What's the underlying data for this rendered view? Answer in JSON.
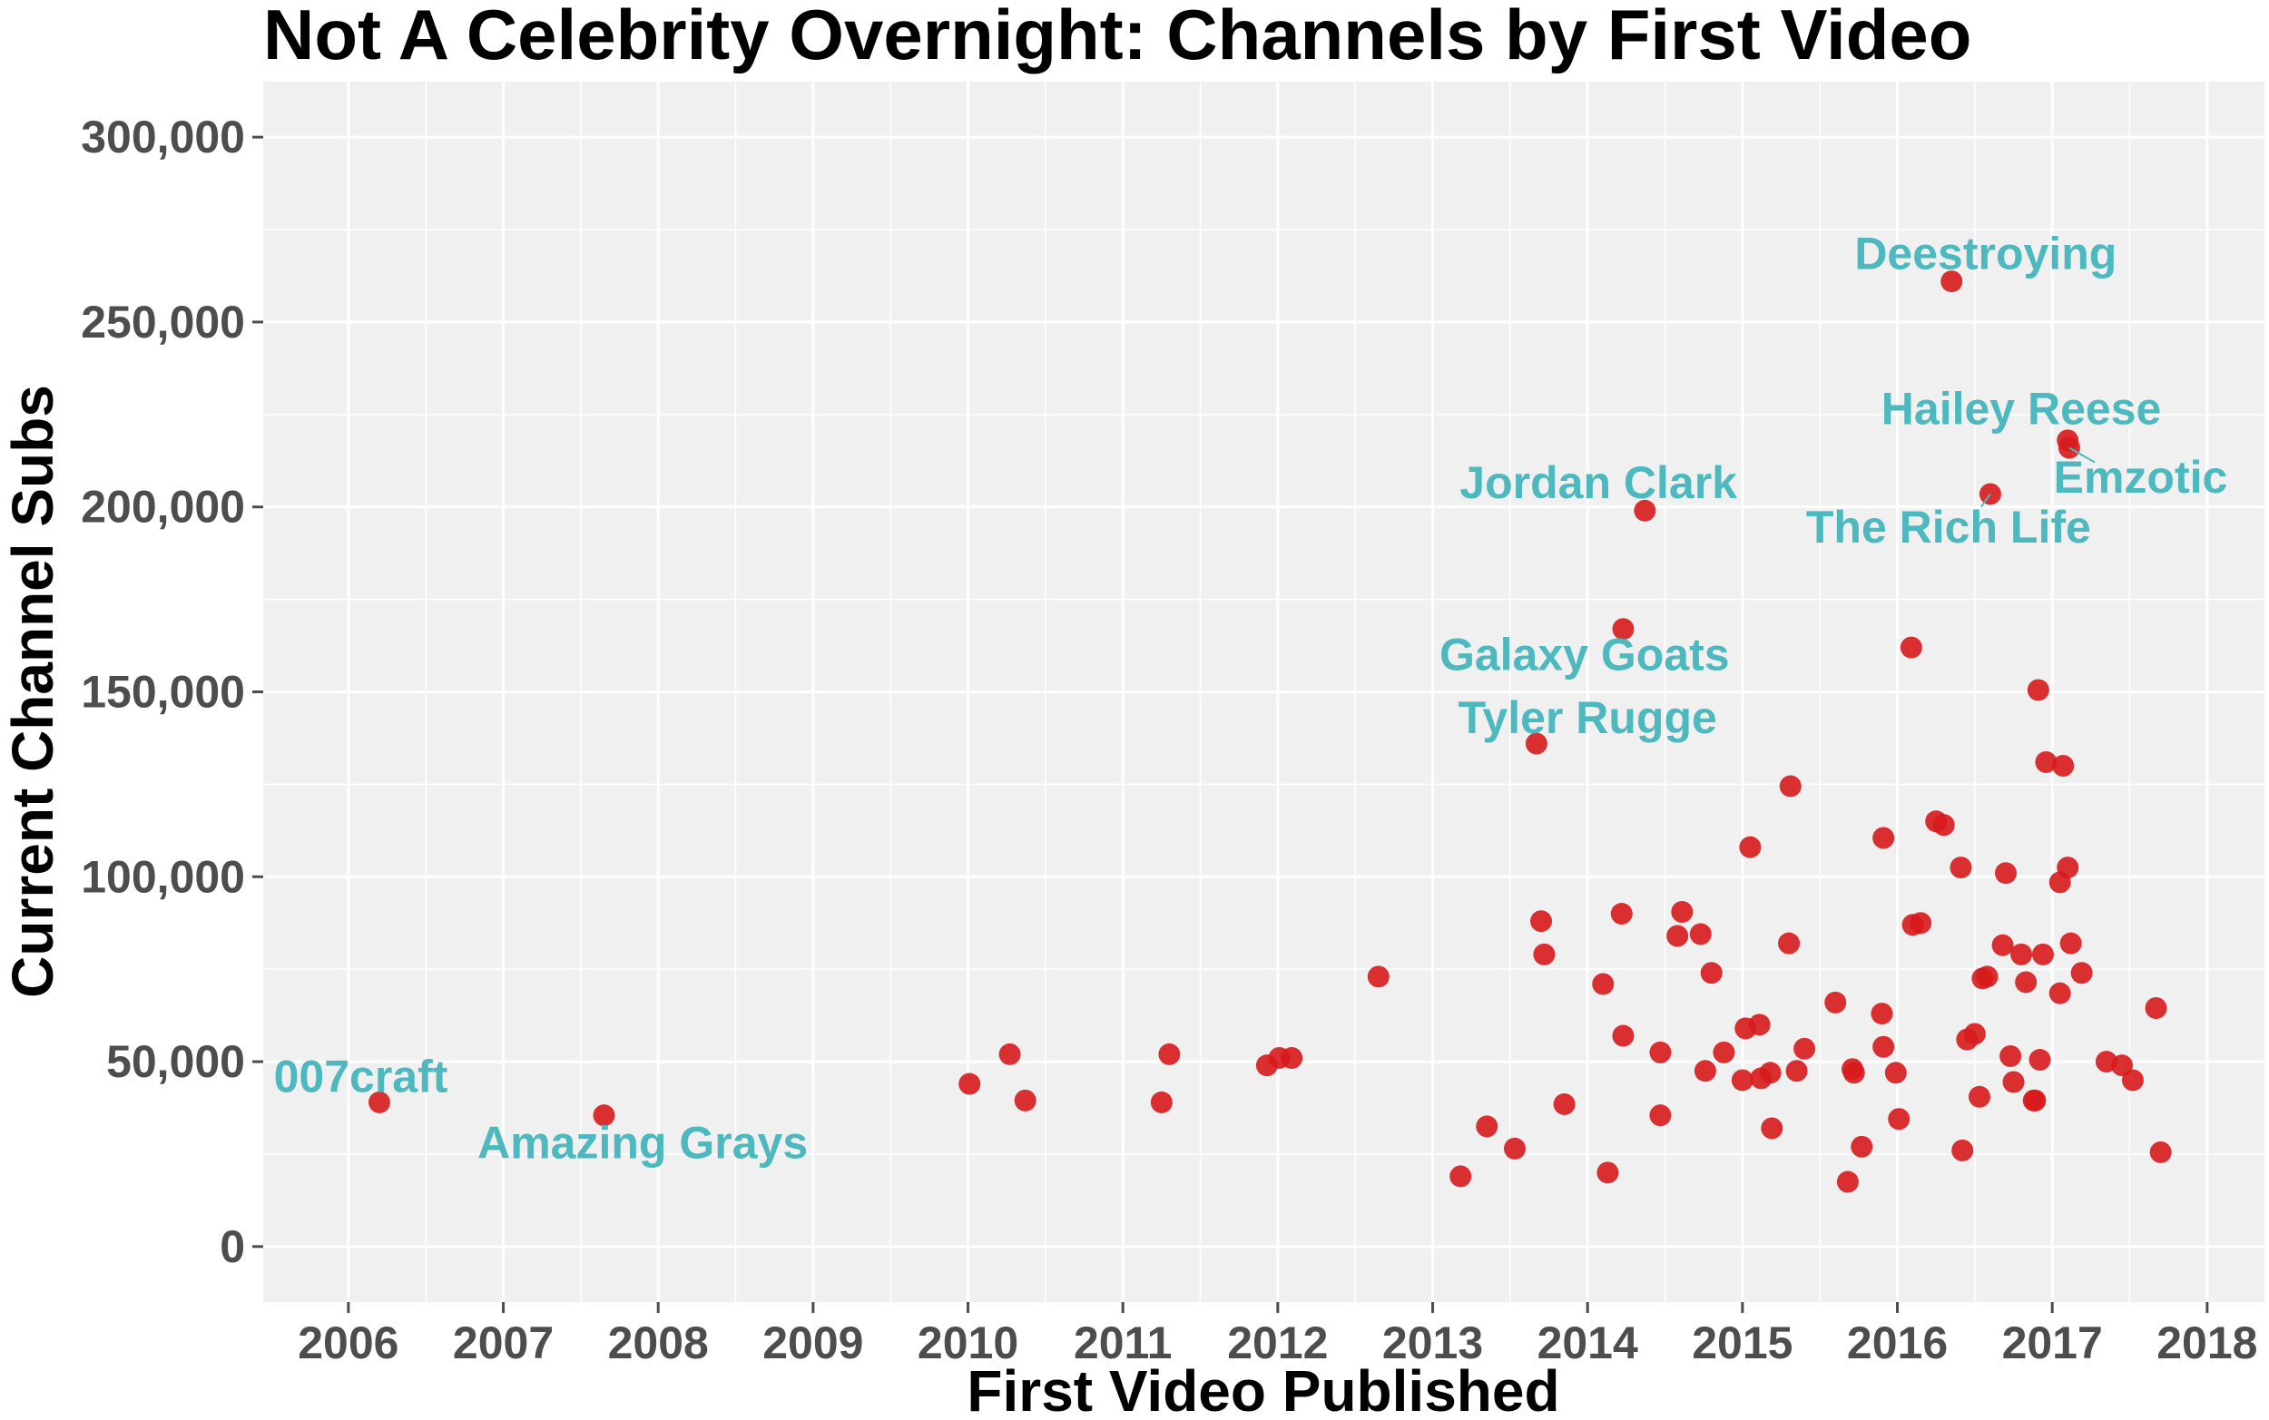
{
  "chart_data": {
    "type": "scatter",
    "title": "Not A Celebrity Overnight: Channels by First Video",
    "xlabel": "First Video Published",
    "ylabel": "Current Channel Subs",
    "xlim": [
      2005.45,
      2018.37
    ],
    "ylim": [
      -15000,
      315000
    ],
    "x_ticks": [
      2006,
      2007,
      2008,
      2009,
      2010,
      2011,
      2012,
      2013,
      2014,
      2015,
      2016,
      2017,
      2018
    ],
    "x_tick_labels": [
      "2006",
      "2007",
      "2008",
      "2009",
      "2010",
      "2011",
      "2012",
      "2013",
      "2014",
      "2015",
      "2016",
      "2017",
      "2018"
    ],
    "y_ticks": [
      0,
      50000,
      100000,
      150000,
      200000,
      250000,
      300000
    ],
    "y_tick_labels": [
      "0",
      "50,000",
      "100,000",
      "150,000",
      "200,000",
      "250,000",
      "300,000"
    ],
    "grid": true,
    "legend": "none",
    "colors": {
      "point": "#d7191c",
      "label": "#4db8bd",
      "panel": "#f0f0f0",
      "grid": "#ffffff",
      "tick": "#4d4d4d"
    },
    "points": [
      {
        "x": 2006.2,
        "y": 39000
      },
      {
        "x": 2007.65,
        "y": 35500
      },
      {
        "x": 2010.01,
        "y": 44000
      },
      {
        "x": 2010.27,
        "y": 52000
      },
      {
        "x": 2010.37,
        "y": 39500
      },
      {
        "x": 2011.25,
        "y": 39000
      },
      {
        "x": 2011.3,
        "y": 52000
      },
      {
        "x": 2011.93,
        "y": 49000
      },
      {
        "x": 2012.01,
        "y": 51000
      },
      {
        "x": 2012.09,
        "y": 51000
      },
      {
        "x": 2012.65,
        "y": 73000
      },
      {
        "x": 2013.18,
        "y": 19000
      },
      {
        "x": 2013.35,
        "y": 32500
      },
      {
        "x": 2013.53,
        "y": 26500
      },
      {
        "x": 2013.67,
        "y": 136000
      },
      {
        "x": 2013.7,
        "y": 88000
      },
      {
        "x": 2013.72,
        "y": 79000
      },
      {
        "x": 2013.85,
        "y": 38500
      },
      {
        "x": 2014.1,
        "y": 71000
      },
      {
        "x": 2014.13,
        "y": 20000
      },
      {
        "x": 2014.22,
        "y": 90000
      },
      {
        "x": 2014.23,
        "y": 57000
      },
      {
        "x": 2014.23,
        "y": 167000
      },
      {
        "x": 2014.37,
        "y": 199000
      },
      {
        "x": 2014.47,
        "y": 52500
      },
      {
        "x": 2014.47,
        "y": 35500
      },
      {
        "x": 2014.58,
        "y": 84000
      },
      {
        "x": 2014.61,
        "y": 90500
      },
      {
        "x": 2014.73,
        "y": 84500
      },
      {
        "x": 2014.76,
        "y": 47500
      },
      {
        "x": 2014.8,
        "y": 74000
      },
      {
        "x": 2014.88,
        "y": 52500
      },
      {
        "x": 2015.0,
        "y": 45000
      },
      {
        "x": 2015.02,
        "y": 59000
      },
      {
        "x": 2015.05,
        "y": 108000
      },
      {
        "x": 2015.11,
        "y": 60000
      },
      {
        "x": 2015.12,
        "y": 45500
      },
      {
        "x": 2015.18,
        "y": 47000
      },
      {
        "x": 2015.19,
        "y": 32000
      },
      {
        "x": 2015.3,
        "y": 82000
      },
      {
        "x": 2015.31,
        "y": 124500
      },
      {
        "x": 2015.35,
        "y": 47500
      },
      {
        "x": 2015.4,
        "y": 53500
      },
      {
        "x": 2015.6,
        "y": 66000
      },
      {
        "x": 2015.68,
        "y": 17500
      },
      {
        "x": 2015.71,
        "y": 48000
      },
      {
        "x": 2015.72,
        "y": 47000
      },
      {
        "x": 2015.77,
        "y": 27000
      },
      {
        "x": 2015.9,
        "y": 63000
      },
      {
        "x": 2015.91,
        "y": 110500
      },
      {
        "x": 2015.91,
        "y": 54000
      },
      {
        "x": 2015.99,
        "y": 47000
      },
      {
        "x": 2016.01,
        "y": 34500
      },
      {
        "x": 2016.09,
        "y": 162000
      },
      {
        "x": 2016.1,
        "y": 87000
      },
      {
        "x": 2016.15,
        "y": 87500
      },
      {
        "x": 2016.25,
        "y": 115000
      },
      {
        "x": 2016.3,
        "y": 114000
      },
      {
        "x": 2016.35,
        "y": 261000
      },
      {
        "x": 2016.41,
        "y": 102500
      },
      {
        "x": 2016.42,
        "y": 26000
      },
      {
        "x": 2016.45,
        "y": 56000
      },
      {
        "x": 2016.5,
        "y": 57500
      },
      {
        "x": 2016.53,
        "y": 40500
      },
      {
        "x": 2016.55,
        "y": 72500
      },
      {
        "x": 2016.58,
        "y": 73000
      },
      {
        "x": 2016.6,
        "y": 203500
      },
      {
        "x": 2016.68,
        "y": 81500
      },
      {
        "x": 2016.7,
        "y": 101000
      },
      {
        "x": 2016.73,
        "y": 51500
      },
      {
        "x": 2016.75,
        "y": 44500
      },
      {
        "x": 2016.8,
        "y": 79000
      },
      {
        "x": 2016.83,
        "y": 71500
      },
      {
        "x": 2016.88,
        "y": 39500
      },
      {
        "x": 2016.89,
        "y": 39500
      },
      {
        "x": 2016.91,
        "y": 150500
      },
      {
        "x": 2016.92,
        "y": 50500
      },
      {
        "x": 2016.94,
        "y": 79000
      },
      {
        "x": 2016.96,
        "y": 131000
      },
      {
        "x": 2017.05,
        "y": 98500
      },
      {
        "x": 2017.05,
        "y": 68500
      },
      {
        "x": 2017.07,
        "y": 130000
      },
      {
        "x": 2017.1,
        "y": 218000
      },
      {
        "x": 2017.11,
        "y": 216000
      },
      {
        "x": 2017.1,
        "y": 102500
      },
      {
        "x": 2017.12,
        "y": 82000
      },
      {
        "x": 2017.19,
        "y": 74000
      },
      {
        "x": 2017.35,
        "y": 50000
      },
      {
        "x": 2017.45,
        "y": 49000
      },
      {
        "x": 2017.52,
        "y": 45000
      },
      {
        "x": 2017.67,
        "y": 64500
      },
      {
        "x": 2017.7,
        "y": 25500
      }
    ],
    "annotations": [
      {
        "text": "007craft",
        "x": 2006.2,
        "y": 39000,
        "lx": 2006.08,
        "ly": 46000,
        "anchor": "middle"
      },
      {
        "text": "Amazing Grays",
        "x": 2007.65,
        "y": 35500,
        "lx": 2007.9,
        "ly": 28000,
        "anchor": "middle"
      },
      {
        "text": "Tyler Rugge",
        "x": 2013.67,
        "y": 136000,
        "lx": 2014.0,
        "ly": 143000,
        "anchor": "middle"
      },
      {
        "text": "Galaxy Goats",
        "x": 2014.23,
        "y": 167000,
        "lx": 2013.98,
        "ly": 160000,
        "anchor": "middle"
      },
      {
        "text": "Jordan Clark",
        "x": 2014.37,
        "y": 199000,
        "lx": 2014.07,
        "ly": 206500,
        "anchor": "middle"
      },
      {
        "text": "Deestroying",
        "x": 2016.35,
        "y": 261000,
        "lx": 2016.57,
        "ly": 268500,
        "anchor": "middle"
      },
      {
        "text": "Hailey Reese",
        "x": 2017.1,
        "y": 218000,
        "lx": 2016.8,
        "ly": 226500,
        "anchor": "middle"
      },
      {
        "text": "Emzotic",
        "x": 2017.11,
        "y": 216000,
        "lx": 2017.57,
        "ly": 208000,
        "anchor": "middle",
        "leader": true
      },
      {
        "text": "The Rich Life",
        "x": 2016.6,
        "y": 203500,
        "lx": 2016.33,
        "ly": 194500,
        "anchor": "middle",
        "leader": true
      }
    ]
  }
}
